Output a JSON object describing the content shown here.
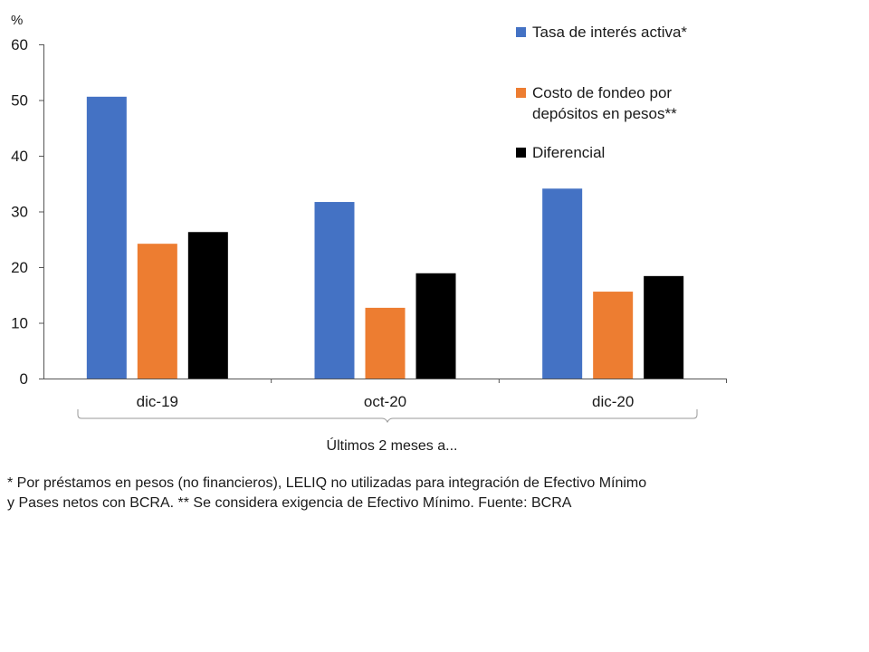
{
  "chart_data": {
    "type": "bar",
    "title": "",
    "ylabel": "%",
    "xlabel": "Últimos 2 meses a...",
    "ylim": [
      0,
      60
    ],
    "yticks": [
      0,
      10,
      20,
      30,
      40,
      50,
      60
    ],
    "categories": [
      "dic-19",
      "oct-20",
      "dic-20"
    ],
    "series": [
      {
        "name": "Tasa de interés activa*",
        "color": "#4472C4",
        "values": [
          50.6,
          31.7,
          34.1
        ]
      },
      {
        "name": "Costo de fondeo por depósitos en pesos**",
        "color": "#ED7D31",
        "values": [
          24.2,
          12.7,
          15.6
        ]
      },
      {
        "name": "Diferencial",
        "color": "#000000",
        "values": [
          26.3,
          18.9,
          18.4
        ]
      }
    ],
    "legend_position": "top-right",
    "grid": false
  },
  "footnote": {
    "line1": "* Por préstamos en pesos (no financieros), LELIQ no utilizadas para integración de Efectivo Mínimo",
    "line2": "y Pases netos con BCRA. ** Se considera exigencia de Efectivo Mínimo. Fuente: BCRA"
  }
}
